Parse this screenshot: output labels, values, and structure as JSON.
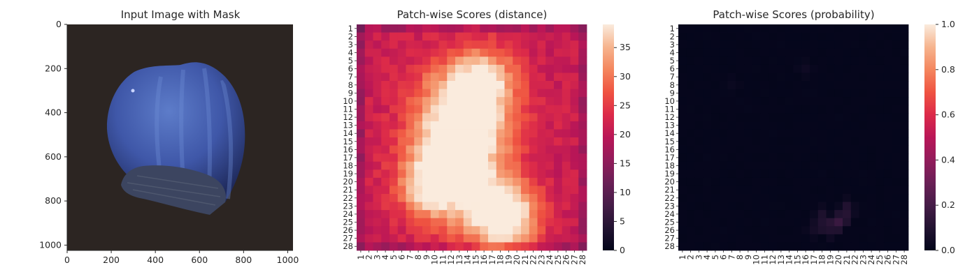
{
  "figure": {
    "panels": [
      {
        "title": "Input Image with Mask",
        "x_ticks": [
          "0",
          "200",
          "400",
          "600",
          "800",
          "1000"
        ],
        "y_ticks": [
          "0",
          "200",
          "400",
          "600",
          "800",
          "1000"
        ]
      },
      {
        "title": "Patch-wise Scores (distance)",
        "colorbar_ticks": [
          "0",
          "5",
          "10",
          "15",
          "20",
          "25",
          "30",
          "35"
        ]
      },
      {
        "title": "Patch-wise Scores (probability)",
        "colorbar_ticks": [
          "0.0",
          "0.2",
          "0.4",
          "0.6",
          "0.8",
          "1.0"
        ]
      }
    ],
    "colors": {
      "background_dark": "#2c2522",
      "nut_blue": "#3f57a8",
      "nut_cap": "#3c4560",
      "heatmap_low": "#03051a",
      "heatmap_high": "#faebdd"
    }
  },
  "chart_data": [
    {
      "type": "image",
      "title": "Input Image with Mask",
      "xlim": [
        0,
        1024
      ],
      "ylim": [
        1024,
        0
      ],
      "x_ticks": [
        0,
        200,
        400,
        600,
        800,
        1000
      ],
      "y_ticks": [
        0,
        200,
        400,
        600,
        800,
        1000
      ]
    },
    {
      "type": "heatmap",
      "title": "Patch-wise Scores (distance)",
      "colormap": "rocket",
      "grid": "28x28",
      "x_labels": [
        "1",
        "2",
        "3",
        "4",
        "5",
        "6",
        "7",
        "8",
        "9",
        "10",
        "11",
        "12",
        "13",
        "14",
        "15",
        "16",
        "17",
        "18",
        "19",
        "20",
        "21",
        "22",
        "23",
        "24",
        "25",
        "26",
        "27",
        "28"
      ],
      "y_labels": [
        "1",
        "2",
        "3",
        "4",
        "5",
        "6",
        "7",
        "8",
        "9",
        "10",
        "11",
        "12",
        "13",
        "14",
        "15",
        "16",
        "17",
        "18",
        "19",
        "20",
        "21",
        "22",
        "23",
        "24",
        "25",
        "26",
        "27",
        "28"
      ],
      "vmin": 0,
      "vmax": 39,
      "colorbar_ticks": [
        0,
        5,
        10,
        15,
        20,
        25,
        30,
        35
      ]
    },
    {
      "type": "heatmap",
      "title": "Patch-wise Scores (probability)",
      "colormap": "rocket",
      "grid": "28x28",
      "x_labels": [
        "1",
        "2",
        "3",
        "4",
        "5",
        "6",
        "7",
        "8",
        "9",
        "10",
        "11",
        "12",
        "13",
        "14",
        "15",
        "16",
        "17",
        "18",
        "19",
        "20",
        "21",
        "22",
        "23",
        "24",
        "25",
        "26",
        "27",
        "28"
      ],
      "y_labels": [
        "1",
        "2",
        "3",
        "4",
        "5",
        "6",
        "7",
        "8",
        "9",
        "10",
        "11",
        "12",
        "13",
        "14",
        "15",
        "16",
        "17",
        "18",
        "19",
        "20",
        "21",
        "22",
        "23",
        "24",
        "25",
        "26",
        "27",
        "28"
      ],
      "vmin": 0,
      "vmax": 1,
      "colorbar_ticks": [
        0.0,
        0.2,
        0.4,
        0.6,
        0.8,
        1.0
      ]
    }
  ]
}
